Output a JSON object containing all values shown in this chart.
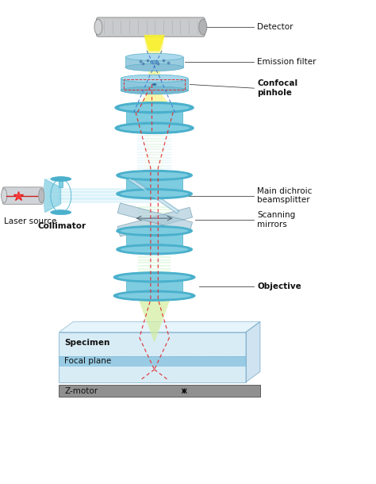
{
  "background_color": "#ffffff",
  "labels": {
    "detector": "Detector",
    "emission_filter": "Emission filter",
    "confocal_pinhole": "Confocal\npinhole",
    "main_dichroic": "Main dichroic\nbeamsplitter",
    "scanning_mirrors": "Scanning\nmirrors",
    "objective": "Objective",
    "specimen": "Specimen",
    "focal_plane": "Focal plane",
    "z_motor": "Z-motor",
    "laser_source": "Laser source",
    "collimator": "Collimator"
  },
  "colors": {
    "cyan_beam": "#5ec8e8",
    "yellow_beam": "#f8f060",
    "green_beam": "#50d850",
    "lens_fill": "#7ecce0",
    "lens_rim": "#4ab0cc",
    "lens_light": "#aadde8",
    "detector_gray": "#c0c4c8",
    "detector_stripe": "#a8acb0",
    "specimen_fill": "#b8ddf0",
    "specimen_edge": "#5090b8",
    "focal_fill": "#80bcd8",
    "zmotor_fill": "#909090",
    "zmotor_edge": "#606060",
    "red_dash": "#e03030",
    "blue_dash": "#4070d0",
    "teal_dash": "#20b8a0",
    "bs_fill": "#a8d0e0",
    "mirror_fill": "#b0c8d8",
    "label_black": "#111111"
  },
  "figsize": [
    4.74,
    6.1
  ],
  "dpi": 100
}
